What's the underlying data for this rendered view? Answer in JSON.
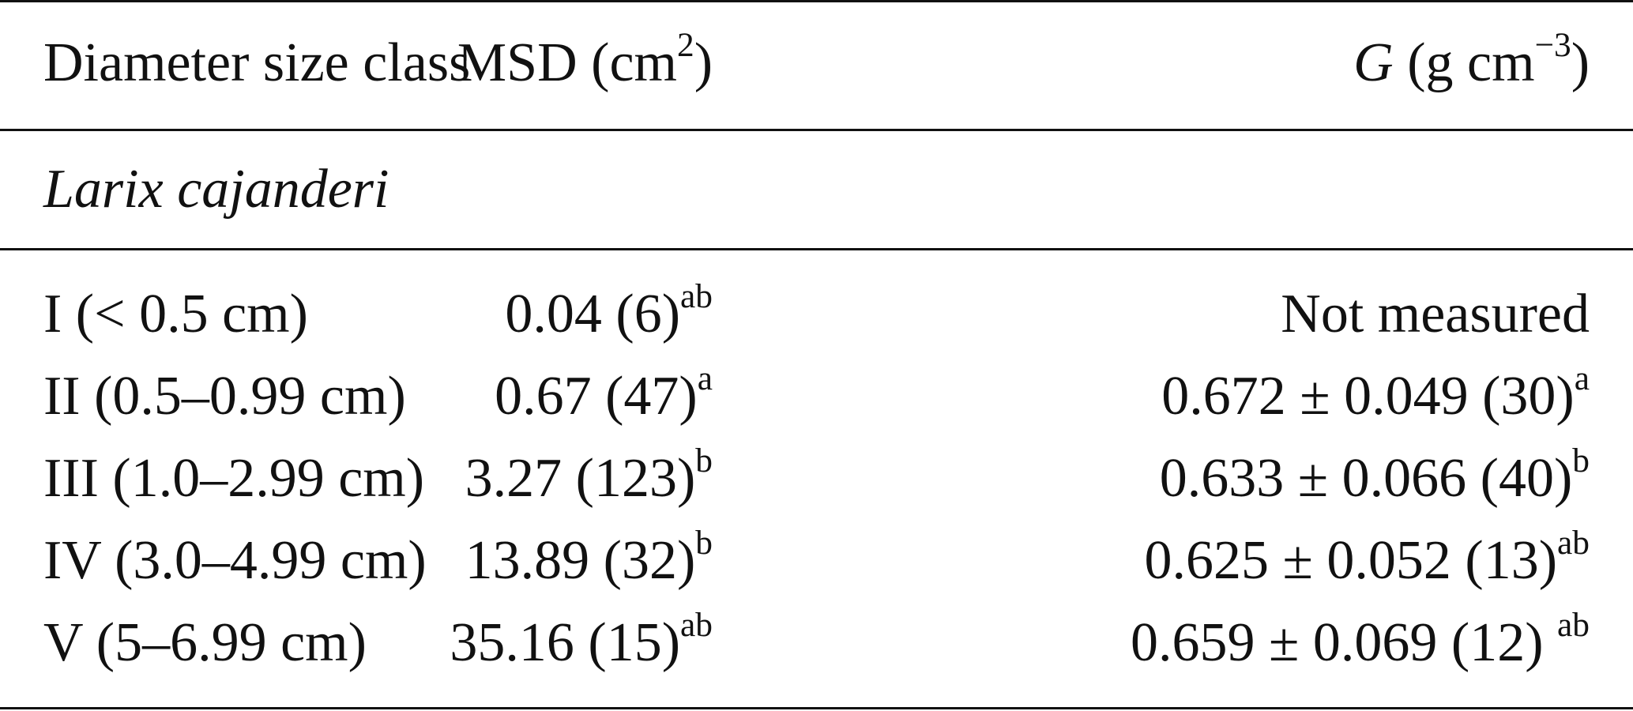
{
  "table": {
    "header": {
      "col1": "Diameter size class",
      "col2_main": "MSD (cm",
      "col2_sup": "2",
      "col2_end": ")",
      "col3_var": "G",
      "col3_main": " (g cm",
      "col3_sup": "−3",
      "col3_end": ")"
    },
    "section_label": "Larix cajanderi",
    "rows": [
      {
        "size_class": "I (< 0.5 cm)",
        "msd": "0.04 (6)",
        "msd_sup": "ab",
        "g": "Not measured",
        "g_sup": ""
      },
      {
        "size_class": "II (0.5–0.99 cm)",
        "msd": "0.67 (47)",
        "msd_sup": "a",
        "g": "0.672 ± 0.049 (30)",
        "g_sup": "a"
      },
      {
        "size_class": "III (1.0–2.99 cm)",
        "msd": "3.27 (123)",
        "msd_sup": "b",
        "g": "0.633 ± 0.066 (40)",
        "g_sup": "b"
      },
      {
        "size_class": "IV (3.0–4.99 cm)",
        "msd": "13.89 (32)",
        "msd_sup": "b",
        "g": "0.625 ± 0.052 (13)",
        "g_sup": "ab"
      },
      {
        "size_class": "V (5–6.99 cm)",
        "msd": "35.16 (15)",
        "msd_sup": "ab",
        "g": "0.659 ± 0.069 (12) ",
        "g_sup": "ab"
      }
    ]
  }
}
